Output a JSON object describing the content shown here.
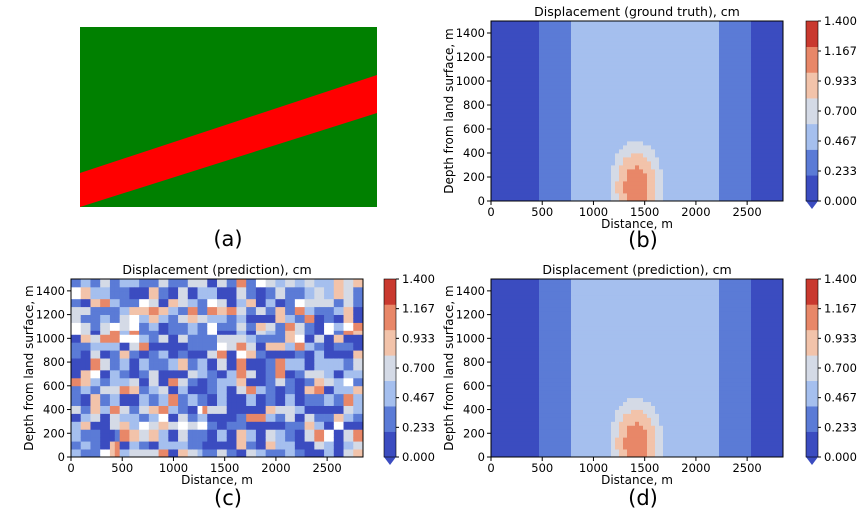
{
  "panel_a": {
    "label": "(a)",
    "colors": {
      "background": "#008000",
      "layer": "#ff0000"
    }
  },
  "chart_data": [
    {
      "id": "b",
      "type": "contour",
      "label": "(b)",
      "title": "Displacement (ground truth), cm",
      "xlabel": "Distance, m",
      "ylabel": "Depth from land surface, m",
      "xlim": [
        0,
        2850
      ],
      "ylim": [
        0,
        1500
      ],
      "xticks": [
        "0",
        "500",
        "1000",
        "1500",
        "2000",
        "2500"
      ],
      "yticks": [
        "0",
        "200",
        "400",
        "600",
        "800",
        "1000",
        "1200",
        "1400"
      ],
      "colorbar": {
        "levels": [
          "0.000",
          "0.233",
          "0.467",
          "0.700",
          "0.933",
          "1.167",
          "1.400"
        ],
        "colors": [
          "#3b4cc0",
          "#5b7bd6",
          "#a5bfee",
          "#d4dae6",
          "#f2c3aa",
          "#e88768",
          "#c9392f"
        ]
      },
      "field": "smooth"
    },
    {
      "id": "c",
      "type": "contour",
      "label": "(c)",
      "title": "Displacement (prediction), cm",
      "xlabel": "Distance, m",
      "ylabel": "Depth from land surface, m",
      "xlim": [
        0,
        2850
      ],
      "ylim": [
        0,
        1500
      ],
      "xticks": [
        "0",
        "500",
        "1000",
        "1500",
        "2000",
        "2500"
      ],
      "yticks": [
        "0",
        "200",
        "400",
        "600",
        "800",
        "1000",
        "1200",
        "1400"
      ],
      "colorbar": {
        "levels": [
          "0.000",
          "0.233",
          "0.467",
          "0.700",
          "0.933",
          "1.167",
          "1.400"
        ],
        "colors": [
          "#3b4cc0",
          "#5b7bd6",
          "#a5bfee",
          "#d4dae6",
          "#f2c3aa",
          "#e88768",
          "#c9392f"
        ]
      },
      "field": "noisy"
    },
    {
      "id": "d",
      "type": "contour",
      "label": "(d)",
      "title": "Displacement (prediction), cm",
      "xlabel": "Distance, m",
      "ylabel": "Depth from land surface, m",
      "xlim": [
        0,
        2850
      ],
      "ylim": [
        0,
        1500
      ],
      "xticks": [
        "0",
        "500",
        "1000",
        "1500",
        "2000",
        "2500"
      ],
      "yticks": [
        "0",
        "200",
        "400",
        "600",
        "800",
        "1000",
        "1200",
        "1400"
      ],
      "colorbar": {
        "levels": [
          "0.000",
          "0.233",
          "0.467",
          "0.700",
          "0.933",
          "1.167",
          "1.400"
        ],
        "colors": [
          "#3b4cc0",
          "#5b7bd6",
          "#a5bfee",
          "#d4dae6",
          "#f2c3aa",
          "#e88768",
          "#c9392f"
        ]
      },
      "field": "smooth"
    }
  ]
}
